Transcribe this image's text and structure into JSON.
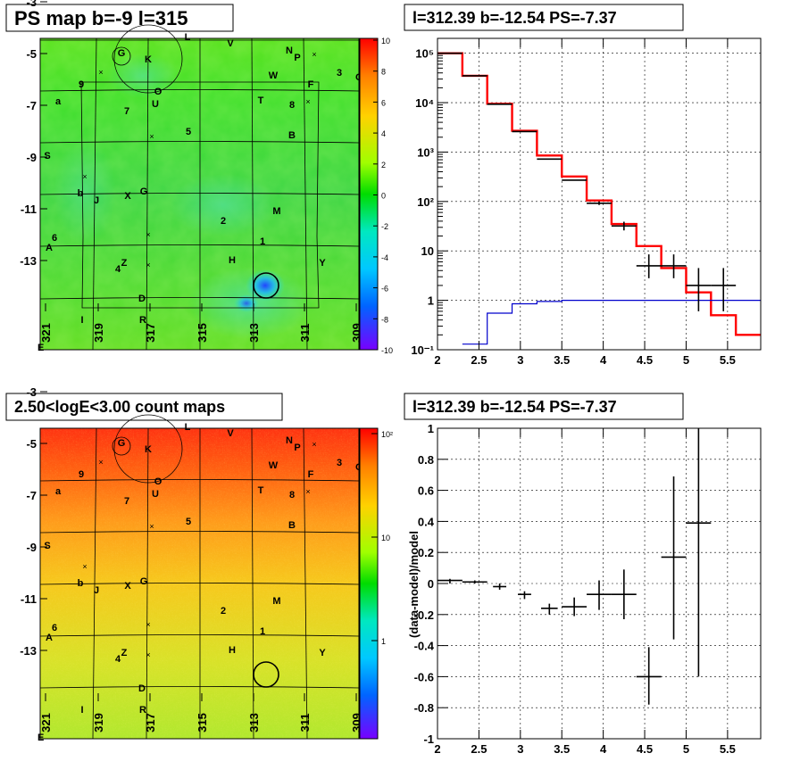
{
  "panels": {
    "ps_map_title": "PS map b=-9 l=315",
    "count_map_title": "2.50<logE<3.00 count maps",
    "spectrum_title": "l=312.39 b=-12.54 PS=-7.37",
    "residual_title": "l=312.39 b=-12.54 PS=-7.37",
    "residual_ylabel": "(data-model)/model"
  },
  "sky_maps": {
    "x_ticks": [
      "321",
      "319",
      "317",
      "315",
      "313",
      "311",
      "309"
    ],
    "y_ticks": [
      "-3",
      "-5",
      "-7",
      "-9",
      "-11",
      "-13"
    ],
    "corner_label": "E",
    "source_labels": [
      "G",
      "K",
      "L",
      "V",
      "N",
      "P",
      "3",
      "C",
      "W",
      "F",
      "9",
      "a",
      "7",
      "U",
      "O",
      "T",
      "8",
      "5",
      "B",
      "S",
      "b",
      "J",
      "X",
      "G",
      "M",
      "2",
      "6",
      "A",
      "1",
      "H",
      "Y",
      "4",
      "Z",
      "D",
      "I",
      "R"
    ],
    "ps_colorbar_ticks": [
      "10",
      "8",
      "6",
      "4",
      "2",
      "0",
      "-2",
      "-4",
      "-6",
      "-8",
      "-10"
    ],
    "count_colorbar_ticks": [
      "10²",
      "10",
      "1"
    ],
    "count_colorbar_exponent": "2"
  },
  "chart_data": [
    {
      "type": "line",
      "log_y": true,
      "xlim": [
        2,
        5.9
      ],
      "ylim": [
        0.1,
        200000
      ],
      "x_ticks": [
        "2",
        "2.5",
        "3",
        "3.5",
        "4",
        "4.5",
        "5",
        "5.5"
      ],
      "y_ticks": [
        "10⁵",
        "10⁴",
        "10³",
        "10²",
        "10",
        "1",
        "10⁻¹"
      ],
      "grid": true,
      "series": [
        {
          "style": "step",
          "color": "#ff0000",
          "edges": [
            2,
            2.3,
            2.6,
            2.9,
            3.2,
            3.5,
            3.8,
            4.1,
            4.4,
            4.7,
            5.0,
            5.3,
            5.6,
            5.9
          ],
          "values": [
            100000,
            35000,
            9500,
            2700,
            850,
            320,
            105,
            35,
            12.5,
            4.5,
            1.45,
            0.5,
            0.2
          ]
        },
        {
          "style": "step",
          "color": "#0000cc",
          "edges": [
            2.3,
            2.6,
            2.9,
            3.2,
            3.5,
            5.9
          ],
          "values": [
            0.13,
            0.55,
            0.85,
            0.95,
            1.0
          ]
        },
        {
          "style": "errorbar",
          "color": "#000000",
          "points": [
            {
              "x": 2.15,
              "y": 100000,
              "xerr": 0.15,
              "ylo": 100000,
              "yhi": 100000
            },
            {
              "x": 2.45,
              "y": 35000,
              "xerr": 0.15,
              "ylo": 35000,
              "yhi": 35000
            },
            {
              "x": 2.75,
              "y": 9300,
              "xerr": 0.15,
              "ylo": 9300,
              "yhi": 9300
            },
            {
              "x": 3.05,
              "y": 2600,
              "xerr": 0.15,
              "ylo": 2600,
              "yhi": 2600
            },
            {
              "x": 3.35,
              "y": 720,
              "xerr": 0.15,
              "ylo": 720,
              "yhi": 720
            },
            {
              "x": 3.65,
              "y": 270,
              "xerr": 0.15,
              "ylo": 270,
              "yhi": 270
            },
            {
              "x": 3.95,
              "y": 92,
              "xerr": 0.15,
              "ylo": 85,
              "yhi": 100
            },
            {
              "x": 4.25,
              "y": 32,
              "xerr": 0.15,
              "ylo": 26,
              "yhi": 39
            },
            {
              "x": 4.55,
              "y": 5,
              "xerr": 0.15,
              "ylo": 2.8,
              "yhi": 8.5
            },
            {
              "x": 4.85,
              "y": 5,
              "xerr": 0.15,
              "ylo": 2.8,
              "yhi": 8.5
            },
            {
              "x": 5.15,
              "y": 2,
              "xerr": 0.15,
              "ylo": 0.6,
              "yhi": 4.5
            },
            {
              "x": 5.45,
              "y": 2,
              "xerr": 0.15,
              "ylo": 0.6,
              "yhi": 4.5
            }
          ]
        }
      ]
    },
    {
      "type": "scatter",
      "xlim": [
        2,
        5.9
      ],
      "ylim": [
        -1,
        1
      ],
      "x_ticks": [
        "2",
        "2.5",
        "3",
        "3.5",
        "4",
        "4.5",
        "5",
        "5.5"
      ],
      "y_ticks": [
        "1",
        "0.8",
        "0.6",
        "0.4",
        "0.2",
        "0",
        "-0.2",
        "-0.4",
        "-0.6",
        "-0.8",
        "-1"
      ],
      "ylabel": "(data-model)/model",
      "grid": true,
      "series": [
        {
          "style": "errorbar",
          "color": "#000000",
          "points": [
            {
              "x": 2.15,
              "y": 0.02,
              "xerr": 0.15,
              "ylo": 0.0,
              "yhi": 0.03
            },
            {
              "x": 2.45,
              "y": 0.01,
              "xerr": 0.15,
              "ylo": 0.0,
              "yhi": 0.02
            },
            {
              "x": 2.75,
              "y": -0.02,
              "xerr": 0.08,
              "ylo": -0.04,
              "yhi": 0.0
            },
            {
              "x": 3.05,
              "y": -0.07,
              "xerr": 0.08,
              "ylo": -0.1,
              "yhi": -0.05
            },
            {
              "x": 3.35,
              "y": -0.16,
              "xerr": 0.1,
              "ylo": -0.2,
              "yhi": -0.13
            },
            {
              "x": 3.65,
              "y": -0.15,
              "xerr": 0.15,
              "ylo": -0.21,
              "yhi": -0.09
            },
            {
              "x": 3.95,
              "y": -0.07,
              "xerr": 0.15,
              "ylo": -0.17,
              "yhi": 0.02
            },
            {
              "x": 4.25,
              "y": -0.07,
              "xerr": 0.15,
              "ylo": -0.23,
              "yhi": 0.09
            },
            {
              "x": 4.55,
              "y": -0.6,
              "xerr": 0.15,
              "ylo": -0.78,
              "yhi": -0.41
            },
            {
              "x": 4.85,
              "y": 0.17,
              "xerr": 0.15,
              "ylo": -0.36,
              "yhi": 0.69
            },
            {
              "x": 5.15,
              "y": 0.39,
              "xerr": 0.15,
              "ylo": -0.6,
              "yhi": 1.0
            }
          ]
        }
      ]
    }
  ]
}
